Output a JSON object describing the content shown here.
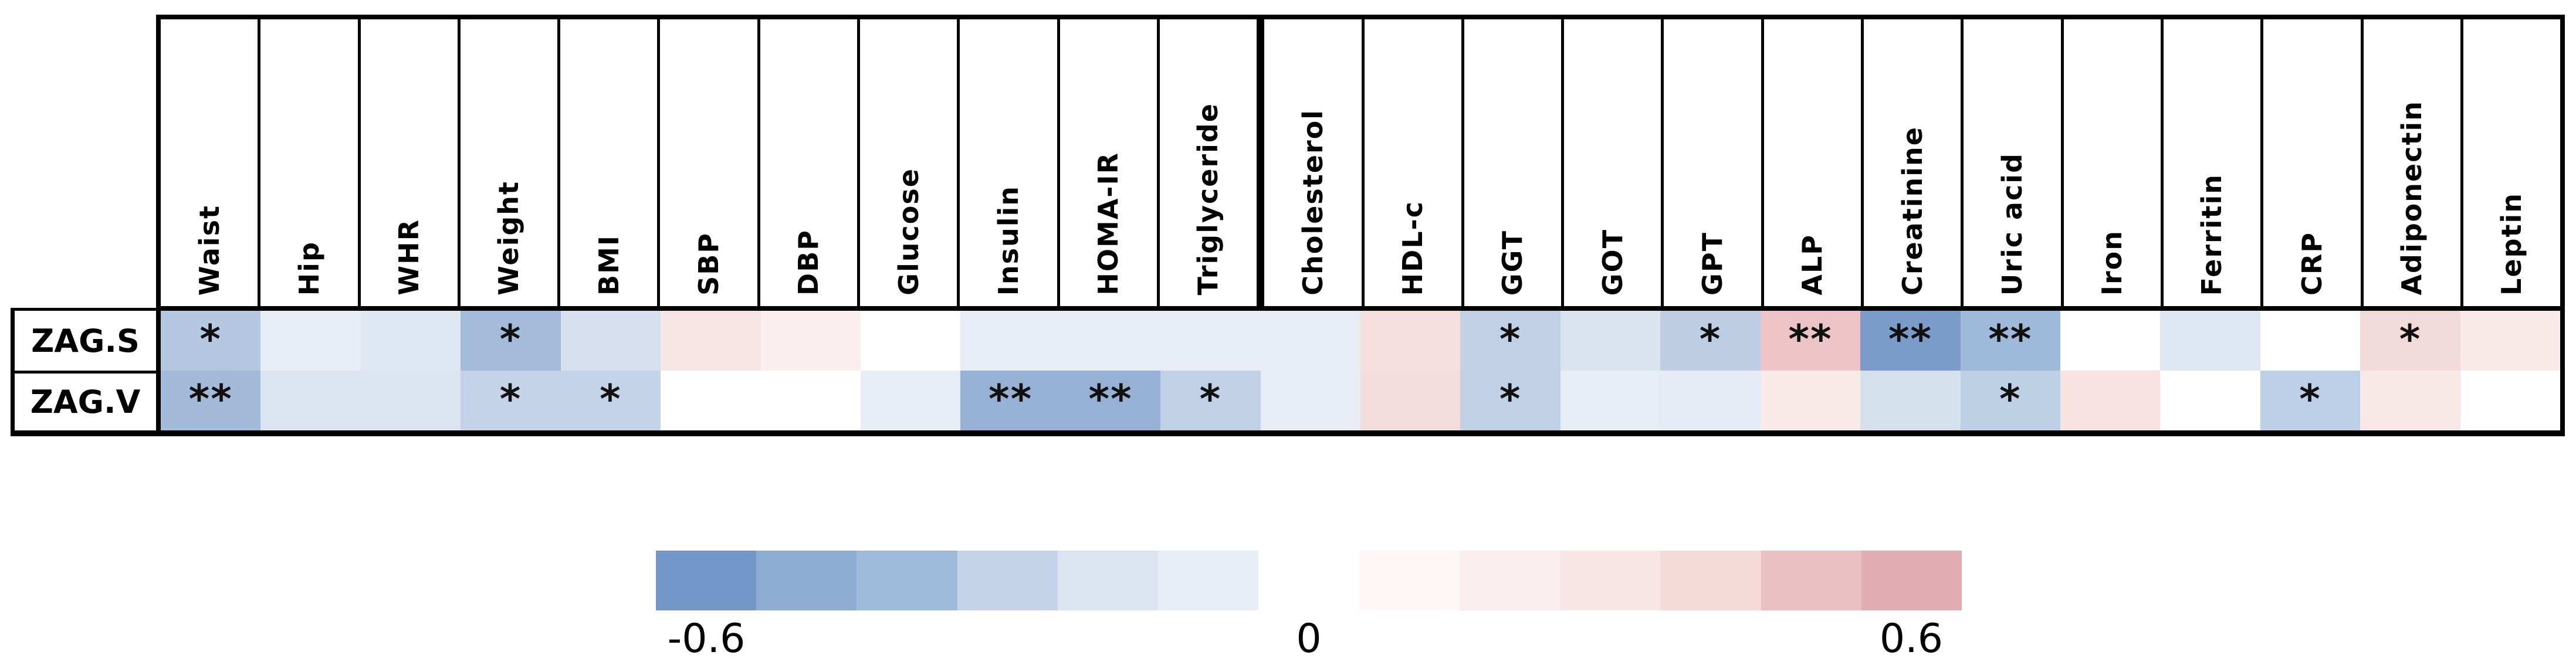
{
  "table": {
    "columns": [
      "Waist",
      "Hip",
      "WHR",
      "Weight",
      "BMI",
      "SBP",
      "DBP",
      "Glucose",
      "Insulin",
      "HOMA-IR",
      "Triglyceride",
      "Cholesterol",
      "HDL-c",
      "GGT",
      "GOT",
      "GPT",
      "ALP",
      "Creatinine",
      "Uric acid",
      "Iron",
      "Ferritin",
      "CRP",
      "Adiponectin",
      "Leptin"
    ],
    "thick_divider_index": 11,
    "rows": [
      {
        "label": "ZAG.S",
        "cells": [
          {
            "color": "#b5c8e1",
            "sig": "*"
          },
          {
            "color": "#e9eef6",
            "sig": ""
          },
          {
            "color": "#dfe8f2",
            "sig": ""
          },
          {
            "color": "#a5bbda",
            "sig": "*"
          },
          {
            "color": "#d6e0ee",
            "sig": ""
          },
          {
            "color": "#f7e4e4",
            "sig": ""
          },
          {
            "color": "#fbeeee",
            "sig": ""
          },
          {
            "color": "#ffffff",
            "sig": ""
          },
          {
            "color": "#e7ecf5",
            "sig": ""
          },
          {
            "color": "#e7ecf5",
            "sig": ""
          },
          {
            "color": "#e7ecf5",
            "sig": ""
          },
          {
            "color": "#e7ecf5",
            "sig": ""
          },
          {
            "color": "#f6dfdf",
            "sig": ""
          },
          {
            "color": "#c0d0e5",
            "sig": "*"
          },
          {
            "color": "#dbe3ef",
            "sig": ""
          },
          {
            "color": "#bccde4",
            "sig": "*"
          },
          {
            "color": "#ecc4c7",
            "sig": "**"
          },
          {
            "color": "#7b9cc9",
            "sig": "**"
          },
          {
            "color": "#9fb9da",
            "sig": "**"
          },
          {
            "color": "#ffffff",
            "sig": ""
          },
          {
            "color": "#dfe7f2",
            "sig": ""
          },
          {
            "color": "#ffffff",
            "sig": ""
          },
          {
            "color": "#f2d9da",
            "sig": "*"
          },
          {
            "color": "#f9e9e9",
            "sig": ""
          }
        ]
      },
      {
        "label": "ZAG.V",
        "cells": [
          {
            "color": "#a3bad9",
            "sig": "**"
          },
          {
            "color": "#dbe4f0",
            "sig": ""
          },
          {
            "color": "#dbe4f0",
            "sig": ""
          },
          {
            "color": "#c4d3e8",
            "sig": "*"
          },
          {
            "color": "#c4d3e8",
            "sig": "*"
          },
          {
            "color": "#ffffff",
            "sig": ""
          },
          {
            "color": "#ffffff",
            "sig": ""
          },
          {
            "color": "#e7edf5",
            "sig": ""
          },
          {
            "color": "#96b1d4",
            "sig": "**"
          },
          {
            "color": "#96b1d4",
            "sig": "**"
          },
          {
            "color": "#c0d0e5",
            "sig": "*"
          },
          {
            "color": "#e7ecf5",
            "sig": ""
          },
          {
            "color": "#f3dcdc",
            "sig": ""
          },
          {
            "color": "#c0d0e5",
            "sig": "*"
          },
          {
            "color": "#e7edf5",
            "sig": ""
          },
          {
            "color": "#e4ebf4",
            "sig": ""
          },
          {
            "color": "#f9e9e9",
            "sig": ""
          },
          {
            "color": "#d5e0ed",
            "sig": ""
          },
          {
            "color": "#bed0e6",
            "sig": "*"
          },
          {
            "color": "#f8e1e1",
            "sig": ""
          },
          {
            "color": "#ffffff",
            "sig": ""
          },
          {
            "color": "#bdd0e7",
            "sig": "*"
          },
          {
            "color": "#f8e7e7",
            "sig": ""
          },
          {
            "color": "#ffffff",
            "sig": ""
          }
        ]
      }
    ]
  },
  "legend": {
    "segments": [
      "#7297c8",
      "#8fadd3",
      "#a0badb",
      "#c5d3e8",
      "#dce4f0",
      "#e9edf5",
      "#ffffff",
      "#fdf6f6",
      "#faeded",
      "#f8e6e6",
      "#f6dada",
      "#e9c0c3",
      "#e2adb2"
    ],
    "labels": [
      {
        "text": "-0.6"
      },
      {
        "text": "0"
      },
      {
        "text": "0.6"
      }
    ]
  },
  "chart_data": {
    "type": "heatmap",
    "title": "",
    "rows": [
      "ZAG.S",
      "ZAG.V"
    ],
    "columns": [
      "Waist",
      "Hip",
      "WHR",
      "Weight",
      "BMI",
      "SBP",
      "DBP",
      "Glucose",
      "Insulin",
      "HOMA-IR",
      "Triglyceride",
      "Cholesterol",
      "HDL-c",
      "GGT",
      "GOT",
      "GPT",
      "ALP",
      "Creatinine",
      "Uric acid",
      "Iron",
      "Ferritin",
      "CRP",
      "Adiponectin",
      "Leptin"
    ],
    "values": [
      [
        -0.35,
        -0.1,
        -0.15,
        -0.4,
        -0.2,
        0.25,
        0.15,
        0,
        -0.1,
        -0.1,
        -0.1,
        -0.1,
        0.3,
        -0.3,
        -0.2,
        -0.3,
        0.45,
        -0.55,
        -0.4,
        0,
        -0.15,
        0,
        0.3,
        0.2
      ],
      [
        -0.4,
        -0.2,
        -0.2,
        -0.25,
        -0.25,
        0,
        0,
        -0.1,
        -0.45,
        -0.45,
        -0.3,
        -0.1,
        0.3,
        -0.3,
        -0.1,
        -0.1,
        0.2,
        -0.2,
        -0.3,
        0.25,
        0,
        -0.3,
        0.2,
        0
      ]
    ],
    "significance": [
      [
        "*",
        "",
        "",
        "*",
        "",
        "",
        "",
        "",
        "",
        "",
        "",
        "",
        "",
        "*",
        "",
        "*",
        "**",
        "**",
        "**",
        "",
        "",
        "",
        "*",
        ""
      ],
      [
        "**",
        "",
        "",
        "*",
        "*",
        "",
        "",
        "",
        "**",
        "**",
        "*",
        "",
        "",
        "*",
        "",
        "",
        "",
        "",
        "*",
        "",
        "",
        "*",
        "",
        ""
      ]
    ],
    "colorscale": {
      "min": -0.6,
      "mid": 0,
      "max": 0.6,
      "min_color": "#7297c8",
      "mid_color": "#ffffff",
      "max_color": "#e2adb2",
      "legend_labels": [
        "-0.6",
        "0",
        "0.6"
      ],
      "legend_position": "bottom"
    }
  }
}
